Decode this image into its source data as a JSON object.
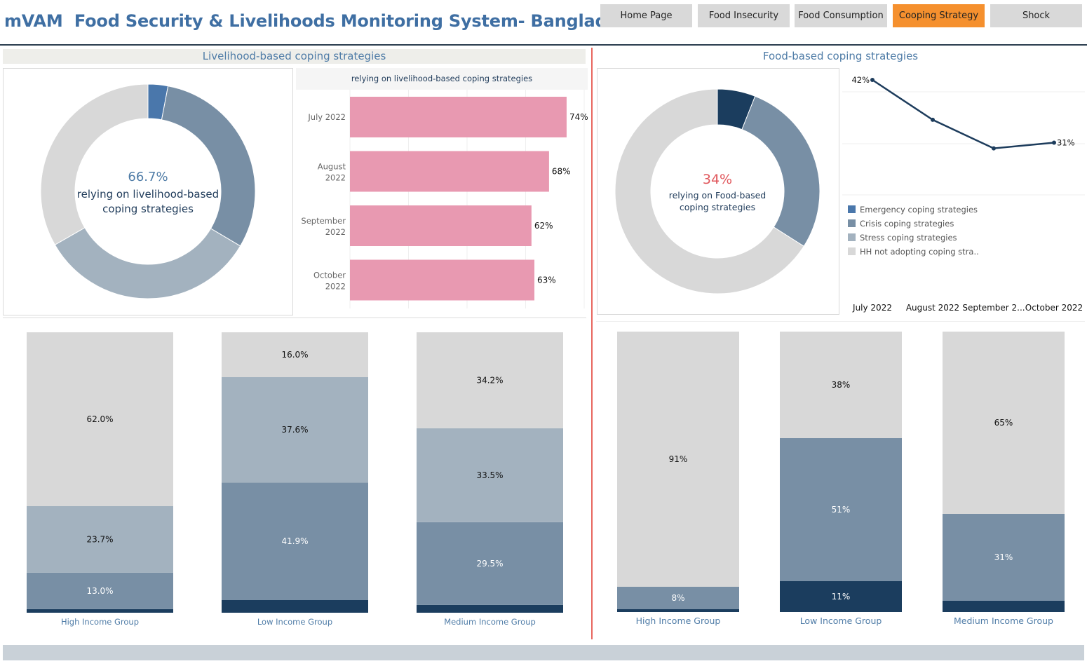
{
  "header": {
    "title": "mVAM  Food Security & Livelihoods Monitoring System- Bangladesh",
    "nav": [
      {
        "label": "Home Page",
        "active": false
      },
      {
        "label": "Food Insecurity",
        "active": false
      },
      {
        "label": "Food Consumption",
        "active": false
      },
      {
        "label": "Cooping Strategy",
        "active": true
      },
      {
        "label": "Shock",
        "active": false
      }
    ]
  },
  "left": {
    "section_title": "Livelihood-based coping strategies",
    "bar_title": "relying on livelihood-based coping strategies",
    "donut_center_value": "66.7%",
    "donut_center_line1": "relying on livelihood-based",
    "donut_center_line2": "coping strategies"
  },
  "right": {
    "section_title": "Food-based coping strategies",
    "donut_center_value": "34%",
    "donut_center_line1": "relying on Food-based",
    "donut_center_line2": "coping strategies"
  },
  "colors": {
    "emergency": "#4a77ab",
    "emergency_dark": "#1b3d5e",
    "crisis": "#788fa5",
    "stress": "#a3b2bf",
    "none": "#d8d8d8",
    "pink": "#e899b1",
    "line": "#1d3c5c",
    "accent": "#f5902e"
  },
  "chart_data": [
    {
      "id": "livelihood-donut",
      "type": "pie",
      "categories": [
        "Emergency coping strategies",
        "Crisis coping strategies",
        "Stress coping strategies",
        "HH not adopting coping strategies"
      ],
      "values": [
        3,
        30.5,
        33.2,
        33.3
      ]
    },
    {
      "id": "livelihood-bars",
      "type": "bar",
      "title": "relying on livelihood-based coping strategies",
      "categories": [
        "July 2022",
        "August 2022",
        "September 2022",
        "October 2022"
      ],
      "values": [
        74,
        68,
        62,
        63
      ],
      "labels": [
        "74%",
        "68%",
        "62%",
        "63%"
      ],
      "xlim": [
        0,
        80
      ]
    },
    {
      "id": "food-donut",
      "type": "pie",
      "categories": [
        "Emergency coping strategies",
        "Crisis coping strategies",
        "Stress coping strategies",
        "HH not adopting coping strategies"
      ],
      "values": [
        6,
        28,
        0,
        66
      ]
    },
    {
      "id": "food-line",
      "type": "line",
      "categories": [
        "July 2022",
        "August 2022",
        "September 2...",
        "October 2022"
      ],
      "values": [
        42,
        35,
        30,
        31
      ],
      "labels": [
        "42%",
        "",
        "",
        "31%"
      ],
      "legend": [
        "Emergency coping strategies",
        "Crisis coping strategies",
        "Stress coping strategies",
        "HH not adopting coping stra.."
      ]
    },
    {
      "id": "livelihood-income-stacked",
      "type": "bar",
      "stacked": true,
      "categories": [
        "High Income Group",
        "Low Income Group",
        "Medium Income Group"
      ],
      "series": [
        {
          "name": "Emergency coping strategies",
          "values": [
            1.3,
            4.5,
            2.8
          ],
          "labels": [
            "",
            "",
            ""
          ]
        },
        {
          "name": "Crisis coping strategies",
          "values": [
            13.0,
            41.9,
            29.5
          ],
          "labels": [
            "13.0%",
            "41.9%",
            "29.5%"
          ]
        },
        {
          "name": "Stress coping strategies",
          "values": [
            23.7,
            37.6,
            33.5
          ],
          "labels": [
            "23.7%",
            "37.6%",
            "33.5%"
          ]
        },
        {
          "name": "HH not adopting coping strategies",
          "values": [
            62.0,
            16.0,
            34.2
          ],
          "labels": [
            "62.0%",
            "16.0%",
            "34.2%"
          ]
        }
      ]
    },
    {
      "id": "food-income-stacked",
      "type": "bar",
      "stacked": true,
      "categories": [
        "High Income Group",
        "Low Income Group",
        "Medium Income Group"
      ],
      "series": [
        {
          "name": "Emergency coping strategies",
          "values": [
            1,
            11,
            4
          ],
          "labels": [
            "",
            "11%",
            ""
          ]
        },
        {
          "name": "Crisis coping strategies",
          "values": [
            8,
            51,
            31
          ],
          "labels": [
            "8%",
            "51%",
            "31%"
          ]
        },
        {
          "name": "HH not adopting coping strategies",
          "values": [
            91,
            38,
            65
          ],
          "labels": [
            "91%",
            "38%",
            "65%"
          ]
        }
      ]
    }
  ]
}
